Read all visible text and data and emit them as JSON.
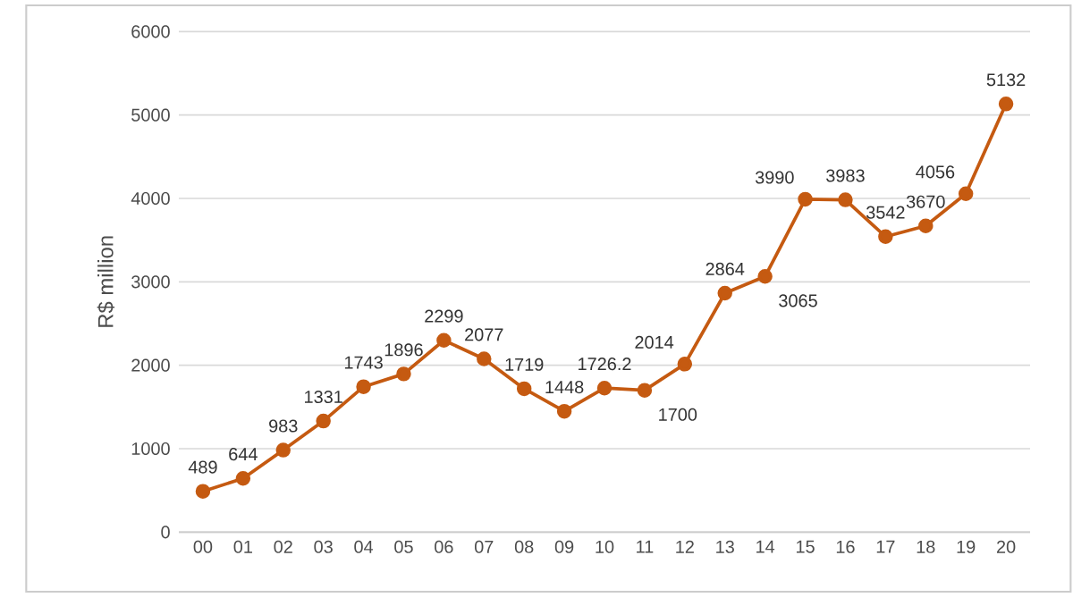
{
  "chart_data": {
    "type": "line",
    "ylabel": "R$ million",
    "categories": [
      "00",
      "01",
      "02",
      "03",
      "04",
      "05",
      "06",
      "07",
      "08",
      "09",
      "10",
      "11",
      "12",
      "13",
      "14",
      "15",
      "16",
      "17",
      "18",
      "19",
      "20"
    ],
    "values": [
      489,
      644,
      983,
      1331,
      1743,
      1896,
      2299,
      2077,
      1719,
      1448,
      1726.2,
      1700,
      2014,
      2864,
      3065,
      3990,
      3983,
      3542,
      3670,
      4056,
      5132
    ],
    "value_labels": [
      "489",
      "644",
      "983",
      "1331",
      "1743",
      "1896",
      "2299",
      "2077",
      "1719",
      "1448",
      "1726.2",
      "1700",
      "2014",
      "2864",
      "3065",
      "3990",
      "3983",
      "3542",
      "3670",
      "4056",
      "5132"
    ],
    "color": "#c55a11",
    "marker": "circle",
    "line_style": "solid",
    "ylim": [
      0,
      6000
    ],
    "yticks": [
      0,
      1000,
      2000,
      3000,
      4000,
      5000,
      6000
    ],
    "grid": "y"
  }
}
